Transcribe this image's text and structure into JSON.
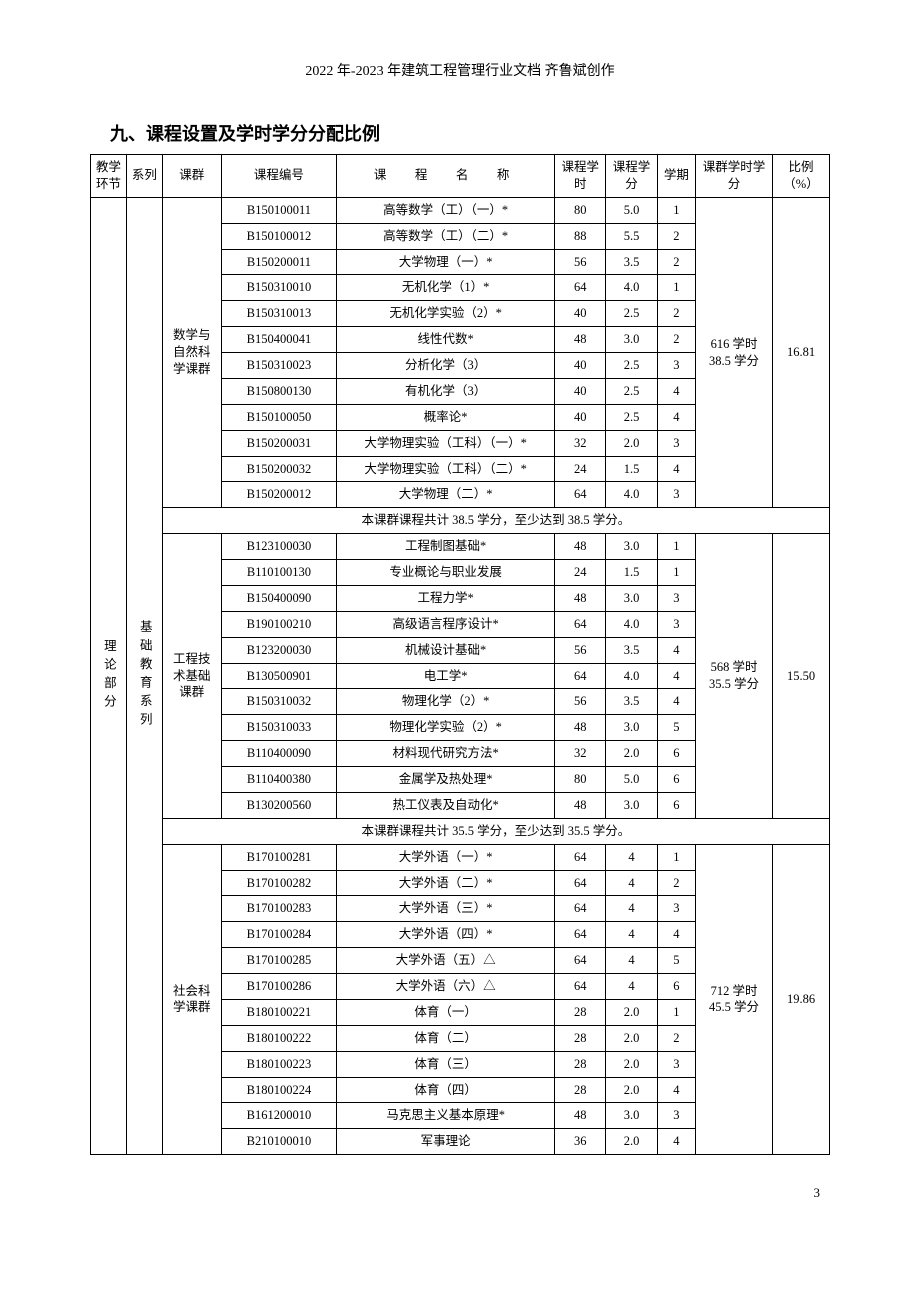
{
  "doc_header": "2022 年-2023 年建筑工程管理行业文档 齐鲁斌创作",
  "section_title": "九、课程设置及学时学分分配比例",
  "page_num": "3",
  "headers": {
    "env": "教学环节",
    "series": "系列",
    "group": "课群",
    "code": "课程编号",
    "name": "课　程　名　称",
    "hours": "课程学时",
    "credit": "课程学分",
    "term": "学期",
    "ghc": "课群学时学分",
    "pct": "比例（%）"
  },
  "env_label": "理论部分",
  "series_label": "基础教育系列",
  "groups": [
    {
      "group_name": "数学与自然科学课群",
      "ghc": "616 学时38.5 学分",
      "pct": "16.81",
      "rows": [
        {
          "code": "B150100011",
          "name": "高等数学（工）（一）*",
          "hours": "80",
          "credit": "5.0",
          "term": "1"
        },
        {
          "code": "B150100012",
          "name": "高等数学（工）（二）*",
          "hours": "88",
          "credit": "5.5",
          "term": "2"
        },
        {
          "code": "B150200011",
          "name": "大学物理（一）*",
          "hours": "56",
          "credit": "3.5",
          "term": "2"
        },
        {
          "code": "B150310010",
          "name": "无机化学（1）*",
          "hours": "64",
          "credit": "4.0",
          "term": "1"
        },
        {
          "code": "B150310013",
          "name": "无机化学实验（2）*",
          "hours": "40",
          "credit": "2.5",
          "term": "2"
        },
        {
          "code": "B150400041",
          "name": "线性代数*",
          "hours": "48",
          "credit": "3.0",
          "term": "2"
        },
        {
          "code": "B150310023",
          "name": "分析化学（3）",
          "hours": "40",
          "credit": "2.5",
          "term": "3"
        },
        {
          "code": "B150800130",
          "name": "有机化学（3）",
          "hours": "40",
          "credit": "2.5",
          "term": "4"
        },
        {
          "code": "B150100050",
          "name": "概率论*",
          "hours": "40",
          "credit": "2.5",
          "term": "4"
        },
        {
          "code": "B150200031",
          "name": "大学物理实验（工科）（一）*",
          "hours": "32",
          "credit": "2.0",
          "term": "3"
        },
        {
          "code": "B150200032",
          "name": "大学物理实验（工科）（二）*",
          "hours": "24",
          "credit": "1.5",
          "term": "4"
        },
        {
          "code": "B150200012",
          "name": "大学物理（二）*",
          "hours": "64",
          "credit": "4.0",
          "term": "3"
        }
      ],
      "summary": "本课群课程共计 38.5 学分，至少达到 38.5 学分。"
    },
    {
      "group_name": "工程技术基础课群",
      "ghc": "568 学时35.5 学分",
      "pct": "15.50",
      "rows": [
        {
          "code": "B123100030",
          "name": "工程制图基础*",
          "hours": "48",
          "credit": "3.0",
          "term": "1"
        },
        {
          "code": "B110100130",
          "name": "专业概论与职业发展",
          "hours": "24",
          "credit": "1.5",
          "term": "1"
        },
        {
          "code": "B150400090",
          "name": "工程力学*",
          "hours": "48",
          "credit": "3.0",
          "term": "3"
        },
        {
          "code": "B190100210",
          "name": "高级语言程序设计*",
          "hours": "64",
          "credit": "4.0",
          "term": "3"
        },
        {
          "code": "B123200030",
          "name": "机械设计基础*",
          "hours": "56",
          "credit": "3.5",
          "term": "4"
        },
        {
          "code": "B130500901",
          "name": "电工学*",
          "hours": "64",
          "credit": "4.0",
          "term": "4"
        },
        {
          "code": "B150310032",
          "name": "物理化学（2）*",
          "hours": "56",
          "credit": "3.5",
          "term": "4"
        },
        {
          "code": "B150310033",
          "name": "物理化学实验（2）*",
          "hours": "48",
          "credit": "3.0",
          "term": "5"
        },
        {
          "code": "B110400090",
          "name": "材料现代研究方法*",
          "hours": "32",
          "credit": "2.0",
          "term": "6"
        },
        {
          "code": "B110400380",
          "name": "金属学及热处理*",
          "hours": "80",
          "credit": "5.0",
          "term": "6"
        },
        {
          "code": "B130200560",
          "name": "热工仪表及自动化*",
          "hours": "48",
          "credit": "3.0",
          "term": "6"
        }
      ],
      "summary": "本课群课程共计 35.5 学分，至少达到 35.5 学分。"
    },
    {
      "group_name": "社会科学课群",
      "ghc": "712 学时45.5 学分",
      "pct": "19.86",
      "rows": [
        {
          "code": "B170100281",
          "name": "大学外语（一）*",
          "hours": "64",
          "credit": "4",
          "term": "1"
        },
        {
          "code": "B170100282",
          "name": "大学外语（二）*",
          "hours": "64",
          "credit": "4",
          "term": "2"
        },
        {
          "code": "B170100283",
          "name": "大学外语（三）*",
          "hours": "64",
          "credit": "4",
          "term": "3"
        },
        {
          "code": "B170100284",
          "name": "大学外语（四）*",
          "hours": "64",
          "credit": "4",
          "term": "4"
        },
        {
          "code": "B170100285",
          "name": "大学外语（五）△",
          "hours": "64",
          "credit": "4",
          "term": "5"
        },
        {
          "code": "B170100286",
          "name": "大学外语（六）△",
          "hours": "64",
          "credit": "4",
          "term": "6"
        },
        {
          "code": "B180100221",
          "name": "体育（一）",
          "hours": "28",
          "credit": "2.0",
          "term": "1"
        },
        {
          "code": "B180100222",
          "name": "体育（二）",
          "hours": "28",
          "credit": "2.0",
          "term": "2"
        },
        {
          "code": "B180100223",
          "name": "体育（三）",
          "hours": "28",
          "credit": "2.0",
          "term": "3"
        },
        {
          "code": "B180100224",
          "name": "体育（四）",
          "hours": "28",
          "credit": "2.0",
          "term": "4"
        },
        {
          "code": "B161200010",
          "name": "马克思主义基本原理*",
          "hours": "48",
          "credit": "3.0",
          "term": "3"
        },
        {
          "code": "B210100010",
          "name": "军事理论",
          "hours": "36",
          "credit": "2.0",
          "term": "4"
        }
      ],
      "summary": ""
    }
  ]
}
